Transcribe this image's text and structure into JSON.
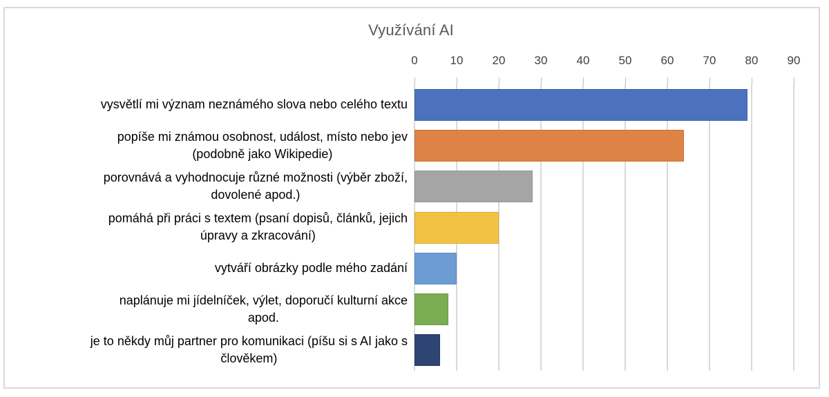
{
  "chart_data": {
    "type": "bar",
    "orientation": "horizontal",
    "title": "Využívání AI",
    "categories": [
      "vysvětlí mi význam neznámého slova nebo celého textu",
      "popíše mi známou osobnost, událost, místo nebo jev (podobně jako Wikipedie)",
      "porovnává a vyhodnocuje různé možnosti (výběr zboží, dovolené apod.)",
      "pomáhá při práci s textem (psaní dopisů, článků, jejich úpravy a zkracování)",
      "vytváří obrázky podle mého zadání",
      "naplánuje mi jídelníček, výlet, doporučí kulturní akce apod.",
      "je to někdy můj partner pro komunikaci (píšu si s AI jako s člověkem)"
    ],
    "category_line_breaks": [
      [
        "vysvětlí mi význam neznámého slova nebo celého textu"
      ],
      [
        "popíše mi známou osobnost, událost, místo nebo jev",
        "(podobně jako Wikipedie)"
      ],
      [
        "porovnává a vyhodnocuje různé možnosti (výběr zboží,",
        "dovolené apod.)"
      ],
      [
        "pomáhá při práci s textem (psaní dopisů, článků, jejich",
        "úpravy a zkracování)"
      ],
      [
        "vytváří obrázky podle mého zadání"
      ],
      [
        "naplánuje mi jídelníček, výlet, doporučí kulturní akce",
        "apod."
      ],
      [
        "je to někdy můj partner pro komunikaci (píšu si s AI jako s",
        "člověkem)"
      ]
    ],
    "values": [
      79,
      64,
      28,
      20,
      10,
      8,
      6
    ],
    "bar_colors": [
      "#4C72BE",
      "#DE8245",
      "#A5A5A5",
      "#F2C244",
      "#6D9CD4",
      "#7AAD52",
      "#2E4573"
    ],
    "bar_border_colors": [
      "#3C62AC",
      "#CB7136",
      "#949494",
      "#DBA92F",
      "#5B8CC6",
      "#689C43",
      "#243A63"
    ],
    "xticks": [
      0,
      10,
      20,
      30,
      40,
      50,
      60,
      70,
      80,
      90
    ],
    "xlim": [
      0,
      90
    ],
    "grid": true,
    "gridline_color": "#D9D9D9",
    "title_color": "#595959",
    "axis_label_color": "#404040",
    "frame_border_color": "#D8D8D8",
    "legend": "none"
  }
}
